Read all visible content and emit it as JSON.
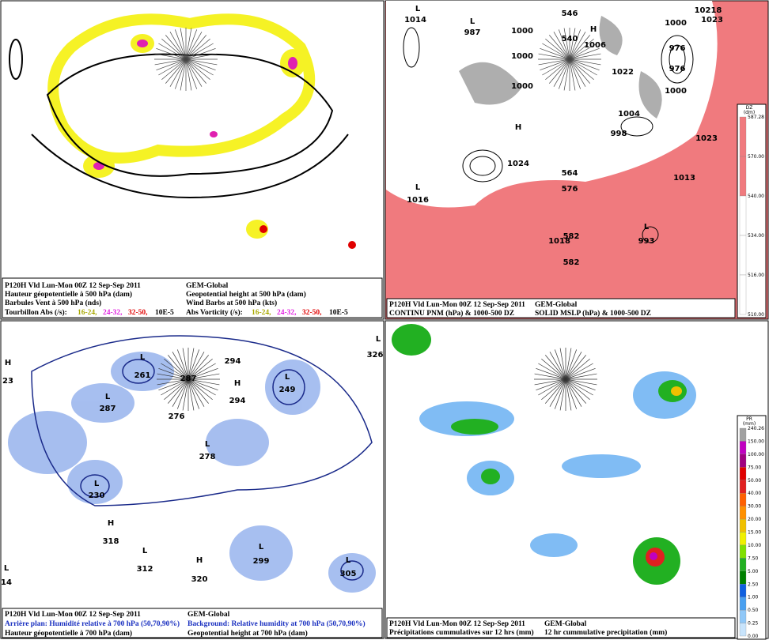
{
  "panels": [
    {
      "caption_left": [
        "P120H Vld Lun-Mon 00Z 12 Sep-Sep 2011",
        "Hauteur géopotentielle à 500 hPa (dam)",
        "Barbules Vent à 500 hPa (nds)",
        "Tourbillon Abs (/s):"
      ],
      "caption_right": [
        "GEM-Global",
        "Geopotential height at 500 hPa (dam)",
        "Wind Barbs at 500 hPa  (kts)",
        "Abs Vorticity (/s):"
      ],
      "legend": [
        "16-24,",
        "24-32,",
        "32-50,",
        "10E-5"
      ]
    },
    {
      "caption_left": [
        "P120H Vld Lun-Mon 00Z 12 Sep-Sep 2011",
        "CONTINU PNM  (hPa) & 1000-500 DZ"
      ],
      "caption_right": [
        "GEM-Global",
        "SOLID   MSLP (hPa) & 1000-500 DZ"
      ],
      "scale_title": [
        "DZ",
        "(dm)"
      ],
      "scale_labels": [
        "587.28",
        "570.00",
        "540.00",
        "534.00",
        "516.00",
        "510.00"
      ],
      "map_labels": [
        "L",
        "1014",
        "L",
        "987",
        "H",
        "1006",
        "1022",
        "1000",
        "1000",
        "1000",
        "1000",
        "1000",
        "976",
        "976",
        "546",
        "540",
        "H",
        "1024",
        "L",
        "1016",
        "1023",
        "1013",
        "998",
        "1004",
        "L",
        "993",
        "1018",
        "582",
        "582",
        "564",
        "576",
        "10218",
        "1023"
      ]
    },
    {
      "caption_left": [
        "P120H Vld Lun-Mon 00Z 12 Sep-Sep 2011",
        "Arrière plan: Humidité relative à 700 hPa (50,70,90%)",
        "Hauteur géopotentielle à 700 hPa (dam)"
      ],
      "caption_right": [
        "GEM-Global",
        "Background: Relative humidity at 700 hPa (50,70,90%)",
        "Geopotential height at 700 hPa (dam)"
      ],
      "map_labels": [
        "H",
        "23",
        "L",
        "261",
        "L",
        "287",
        "287",
        "276",
        "294",
        "H",
        "294",
        "L",
        "249",
        "L",
        "278",
        "L",
        "230",
        "H",
        "318",
        "L",
        "312",
        "H",
        "320",
        "L",
        "299",
        "L",
        "305",
        "L",
        "14",
        "L",
        "326"
      ]
    },
    {
      "caption_left": [
        "P120H Vld Lun-Mon 00Z 12 Sep-Sep 2011",
        "Précipitations cummulatives sur 12 hrs (mm)"
      ],
      "caption_right": [
        "GEM-Global",
        "12 hr cummulative precipitation        (mm)"
      ],
      "scale_title": [
        "PR",
        "(mm)"
      ],
      "scale_labels": [
        "240.26",
        "150.00",
        "100.00",
        "75.00",
        "50.00",
        "40.00",
        "30.00",
        "20.00",
        "15.00",
        "10.00",
        "7.50",
        "5.00",
        "2.50",
        "1.00",
        "0.50",
        "0.25",
        "0.00"
      ]
    }
  ]
}
